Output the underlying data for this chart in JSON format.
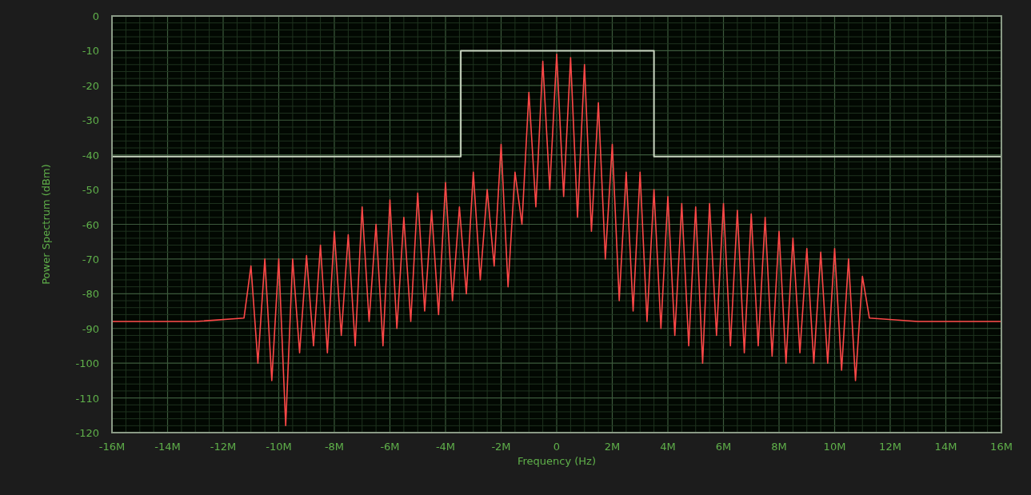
{
  "chart_data": {
    "type": "line",
    "xlabel": "Frequency (Hz)",
    "ylabel": "Power Spectrum  (dBm)",
    "xlim": [
      -16000000,
      16000000
    ],
    "xticks": [
      {
        "value": -16000000,
        "label": "-16M"
      },
      {
        "value": -14000000,
        "label": "-14M"
      },
      {
        "value": -12000000,
        "label": "-12M"
      },
      {
        "value": -10000000,
        "label": "-10M"
      },
      {
        "value": -8000000,
        "label": "-8M"
      },
      {
        "value": -6000000,
        "label": "-6M"
      },
      {
        "value": -4000000,
        "label": "-4M"
      },
      {
        "value": -2000000,
        "label": "-2M"
      },
      0,
      {
        "value": 2000000,
        "label": "2M"
      },
      {
        "value": 4000000,
        "label": "4M"
      },
      {
        "value": 6000000,
        "label": "6M"
      },
      {
        "value": 8000000,
        "label": "8M"
      },
      {
        "value": 10000000,
        "label": "10M"
      },
      {
        "value": 12000000,
        "label": "12M"
      },
      {
        "value": 14000000,
        "label": "14M"
      },
      {
        "value": 16000000,
        "label": "16M"
      }
    ],
    "ylim": [
      -120,
      0
    ],
    "yticks": [
      -120,
      -110,
      -100,
      -90,
      -80,
      -70,
      -60,
      -50,
      -40,
      -30,
      -20,
      -10,
      0
    ],
    "grid": true,
    "line_style": "solid",
    "series": [
      {
        "color": "#ff4848",
        "x": [
          -16000000,
          -13000000,
          -11250000,
          -11000000,
          -10750000,
          -10500000,
          -10250000,
          -10000000,
          -9750000,
          -9500000,
          -9250000,
          -9000000,
          -8750000,
          -8500000,
          -8250000,
          -8000000,
          -7750000,
          -7500000,
          -7250000,
          -7000000,
          -6750000,
          -6500000,
          -6250000,
          -6000000,
          -5750000,
          -5500000,
          -5250000,
          -5000000,
          -4750000,
          -4500000,
          -4250000,
          -4000000,
          -3750000,
          -3500000,
          -3250000,
          -3000000,
          -2750000,
          -2500000,
          -2250000,
          -2000000,
          -1750000,
          -1500000,
          -1250000,
          -1000000,
          -750000,
          -500000,
          -250000,
          0,
          250000,
          500000,
          750000,
          1000000,
          1250000,
          1500000,
          1750000,
          2000000,
          2250000,
          2500000,
          2750000,
          3000000,
          3250000,
          3500000,
          3750000,
          4000000,
          4250000,
          4500000,
          4750000,
          5000000,
          5250000,
          5500000,
          5750000,
          6000000,
          6250000,
          6500000,
          6750000,
          7000000,
          7250000,
          7500000,
          7750000,
          8000000,
          8250000,
          8500000,
          8750000,
          9000000,
          9250000,
          9500000,
          9750000,
          10000000,
          10250000,
          10500000,
          10750000,
          11000000,
          11250000,
          13000000,
          16000000
        ],
        "values": [
          -88,
          -88,
          -87,
          -72,
          -100,
          -70,
          -105,
          -70,
          -118,
          -70,
          -97,
          -69,
          -95,
          -66,
          -97,
          -62,
          -92,
          -63,
          -95,
          -55,
          -88,
          -60,
          -95,
          -53,
          -90,
          -58,
          -88,
          -51,
          -85,
          -56,
          -86,
          -48,
          -82,
          -55,
          -80,
          -45,
          -76,
          -50,
          -72,
          -37,
          -78,
          -45,
          -60,
          -22,
          -55,
          -13,
          -50,
          -11,
          -52,
          -12,
          -58,
          -14,
          -62,
          -25,
          -70,
          -37,
          -82,
          -45,
          -85,
          -45,
          -88,
          -50,
          -90,
          -52,
          -92,
          -54,
          -95,
          -55,
          -100,
          -54,
          -92,
          -54,
          -95,
          -56,
          -97,
          -57,
          -95,
          -58,
          -98,
          -62,
          -100,
          -64,
          -97,
          -67,
          -100,
          -68,
          -100,
          -67,
          -102,
          -70,
          -105,
          -75,
          -87,
          -88,
          -88
        ]
      },
      {
        "type": "step",
        "color": "#c8d4c0",
        "x": [
          -16000000,
          -3450000,
          3500000,
          16000000
        ],
        "values": [
          -40.5,
          -10,
          -40.5,
          -40.5
        ]
      }
    ]
  }
}
